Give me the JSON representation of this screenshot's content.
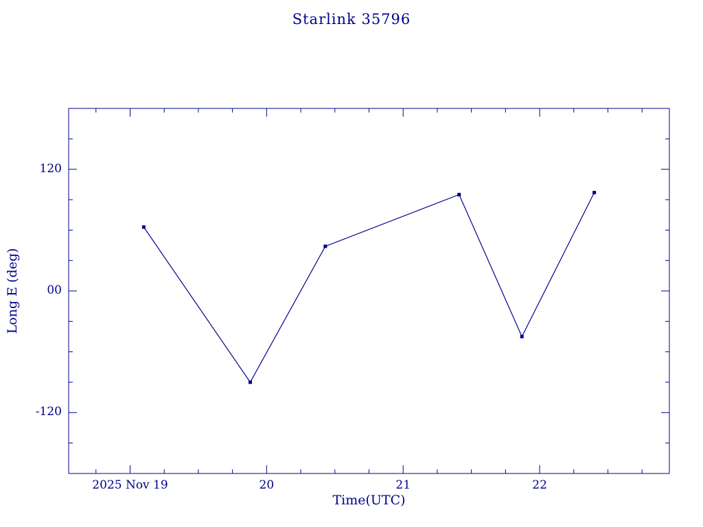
{
  "chart_data": {
    "type": "line",
    "title": "Starlink 35796",
    "xlabel": "Time(UTC)",
    "ylabel": "Long E (deg)",
    "x_days": [
      19.1,
      19.88,
      20.43,
      21.41,
      21.87,
      22.4
    ],
    "y_deg": [
      63,
      -90,
      44,
      95,
      -45,
      97
    ],
    "xlim": [
      18.55,
      22.95
    ],
    "ylim": [
      -180,
      180
    ],
    "x_major_ticks": [
      19,
      20,
      21,
      22
    ],
    "x_tick_labels": [
      "2025 Nov 19",
      "20",
      "21",
      "22"
    ],
    "y_major_ticks": [
      -120,
      0,
      120
    ],
    "y_tick_labels": [
      "-120",
      "00",
      "120"
    ],
    "x_minor_step": 0.25,
    "y_minor_step": 30,
    "line_color": "#00008b",
    "marker": "square",
    "legend": "none",
    "grid": "off"
  }
}
